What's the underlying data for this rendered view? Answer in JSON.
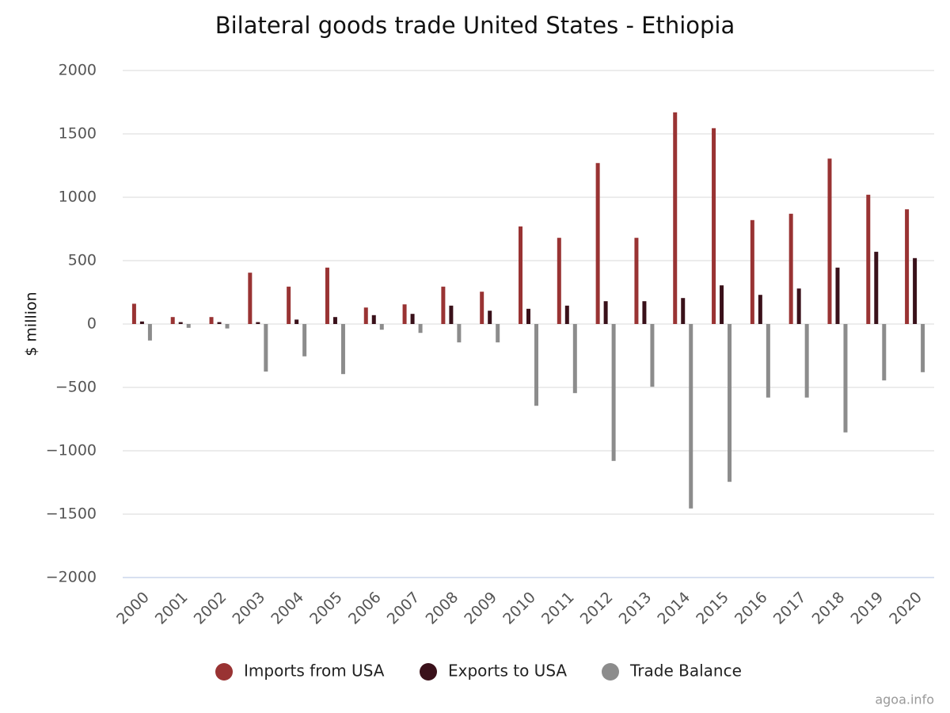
{
  "chart_data": {
    "type": "bar",
    "title": "Bilateral goods trade United States - Ethiopia",
    "y_label": "$ million",
    "credit": "agoa.info",
    "categories": [
      "2000",
      "2001",
      "2002",
      "2003",
      "2004",
      "2005",
      "2006",
      "2007",
      "2008",
      "2009",
      "2010",
      "2011",
      "2012",
      "2013",
      "2014",
      "2015",
      "2016",
      "2017",
      "2018",
      "2019",
      "2020"
    ],
    "series": [
      {
        "name": "Imports from USA",
        "color": "#993333",
        "values": [
          160,
          55,
          55,
          405,
          295,
          445,
          130,
          155,
          295,
          255,
          770,
          680,
          1270,
          680,
          1670,
          1545,
          820,
          870,
          1305,
          1020,
          905
        ]
      },
      {
        "name": "Exports to USA",
        "color": "#3a111a",
        "values": [
          20,
          15,
          15,
          15,
          35,
          55,
          70,
          80,
          145,
          105,
          120,
          145,
          180,
          180,
          205,
          305,
          230,
          280,
          445,
          570,
          520
        ]
      },
      {
        "name": "Trade Balance",
        "color": "#8c8c8c",
        "values": [
          -130,
          -30,
          -35,
          -375,
          -255,
          -395,
          -45,
          -70,
          -145,
          -145,
          -645,
          -545,
          -1080,
          -495,
          -1455,
          -1245,
          -580,
          -580,
          -855,
          -445,
          -380
        ]
      }
    ],
    "ylim": [
      -2000,
      2000
    ],
    "yticks": [
      {
        "value": -2000,
        "label": "−2000"
      },
      {
        "value": -1500,
        "label": "−1500"
      },
      {
        "value": -1000,
        "label": "−1000"
      },
      {
        "value": -500,
        "label": "−500"
      },
      0,
      500,
      1000,
      1500,
      2000
    ],
    "grid": true,
    "legend": "bottom"
  }
}
